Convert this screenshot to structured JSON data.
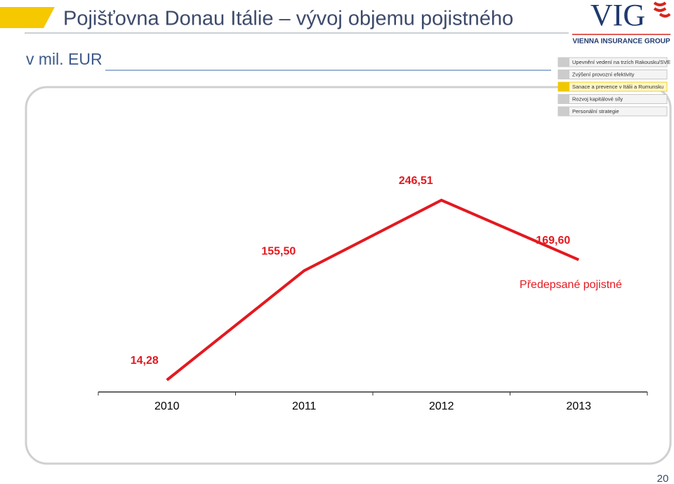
{
  "slide": {
    "title": "Pojišťovna Donau Itálie – vývoj objemu pojistného",
    "unit": "v mil. EUR",
    "logo": "VIG",
    "logo_sub": "VIENNA INSURANCE GROUP",
    "menu": [
      "Upevnění vedení na trzích Rakousku/SVE",
      "Zvýšení provozní efektivity",
      "Sanace a prevence v Itálii a Rumunsku",
      "Rozvoj kapitálové síly",
      "Personální strategie"
    ],
    "page_number": "20"
  },
  "chart_data": {
    "type": "line",
    "categories": [
      "2010",
      "2011",
      "2012",
      "2013"
    ],
    "series": [
      {
        "name": "Předepsané pojistné",
        "color": "#e3191f",
        "values": [
          14.28,
          155.5,
          246.51,
          169.6
        ],
        "value_labels": [
          "14,28",
          "155,50",
          "246,51",
          "169,60"
        ]
      }
    ]
  }
}
